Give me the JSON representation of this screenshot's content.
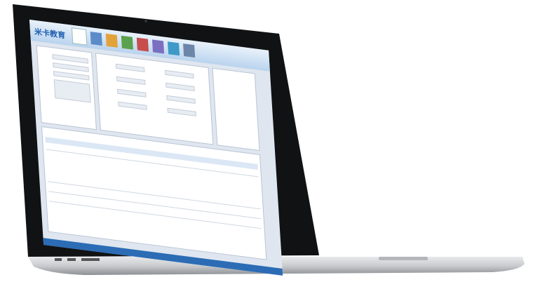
{
  "app": {
    "logo": "米卡教育"
  }
}
